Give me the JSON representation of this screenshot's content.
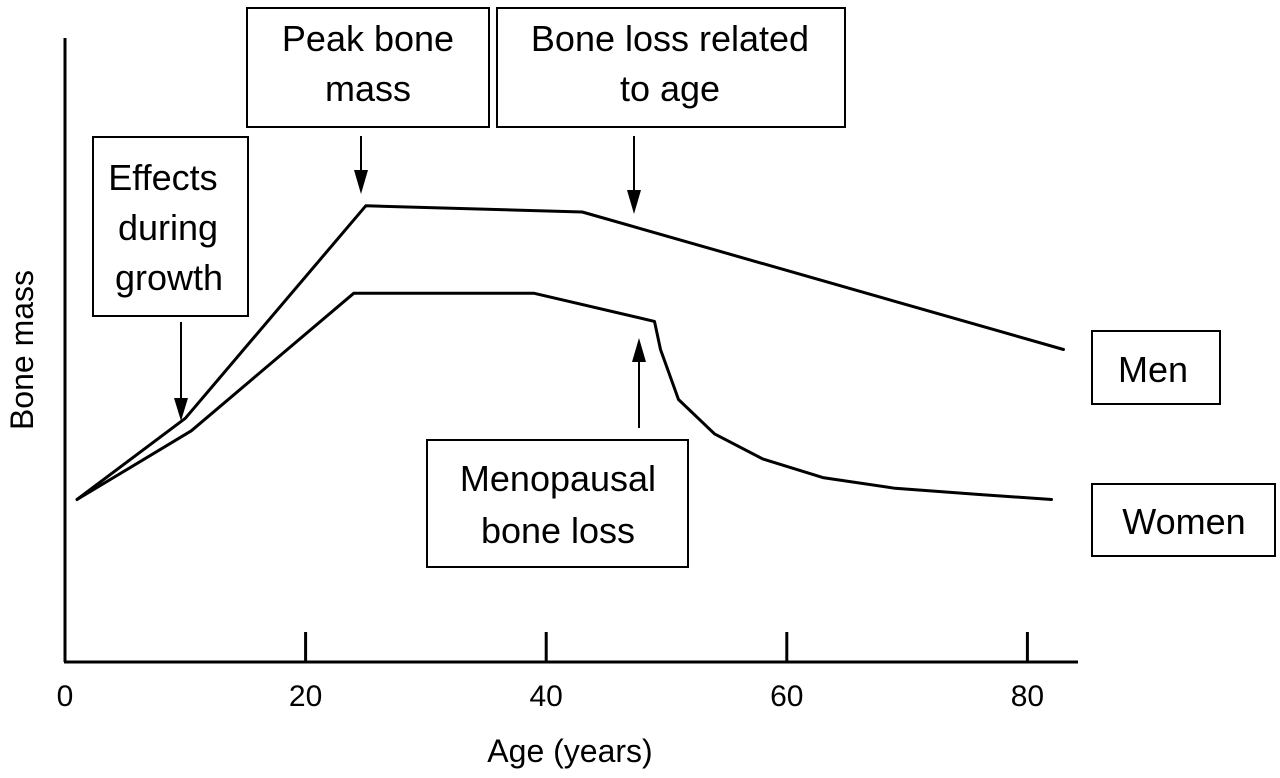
{
  "chart_data": {
    "type": "line",
    "title": "",
    "xlabel": "Age (years)",
    "ylabel": "Bone mass",
    "xlim": [
      0,
      84
    ],
    "ylim": [
      0,
      100
    ],
    "x_ticks": [
      0,
      20,
      40,
      60,
      80
    ],
    "grid": false,
    "legend_placement": "right",
    "series": [
      {
        "name": "Men",
        "x": [
          1,
          10,
          25,
          43,
          83
        ],
        "y": [
          26,
          39,
          73,
          72,
          50
        ]
      },
      {
        "name": "Women",
        "x": [
          1,
          10.5,
          24,
          39,
          49,
          49.5,
          51,
          54,
          58,
          63,
          69,
          76,
          82
        ],
        "y": [
          26,
          37,
          59,
          59,
          54.5,
          50,
          42,
          36.5,
          32.5,
          29.5,
          27.8,
          26.8,
          26
        ]
      }
    ],
    "annotations": [
      {
        "id": "growth",
        "lines": [
          "Effects",
          "during",
          "growth"
        ],
        "target": [
          9.5,
          40
        ]
      },
      {
        "id": "peak",
        "lines": [
          "Peak bone",
          "mass"
        ],
        "target": [
          24.8,
          74
        ]
      },
      {
        "id": "age_loss",
        "lines": [
          "Bone loss related",
          "to age"
        ],
        "target": [
          47.5,
          70
        ]
      },
      {
        "id": "menopause",
        "lines": [
          "Menopausal",
          "bone loss"
        ],
        "target": [
          47.7,
          52
        ]
      }
    ]
  }
}
